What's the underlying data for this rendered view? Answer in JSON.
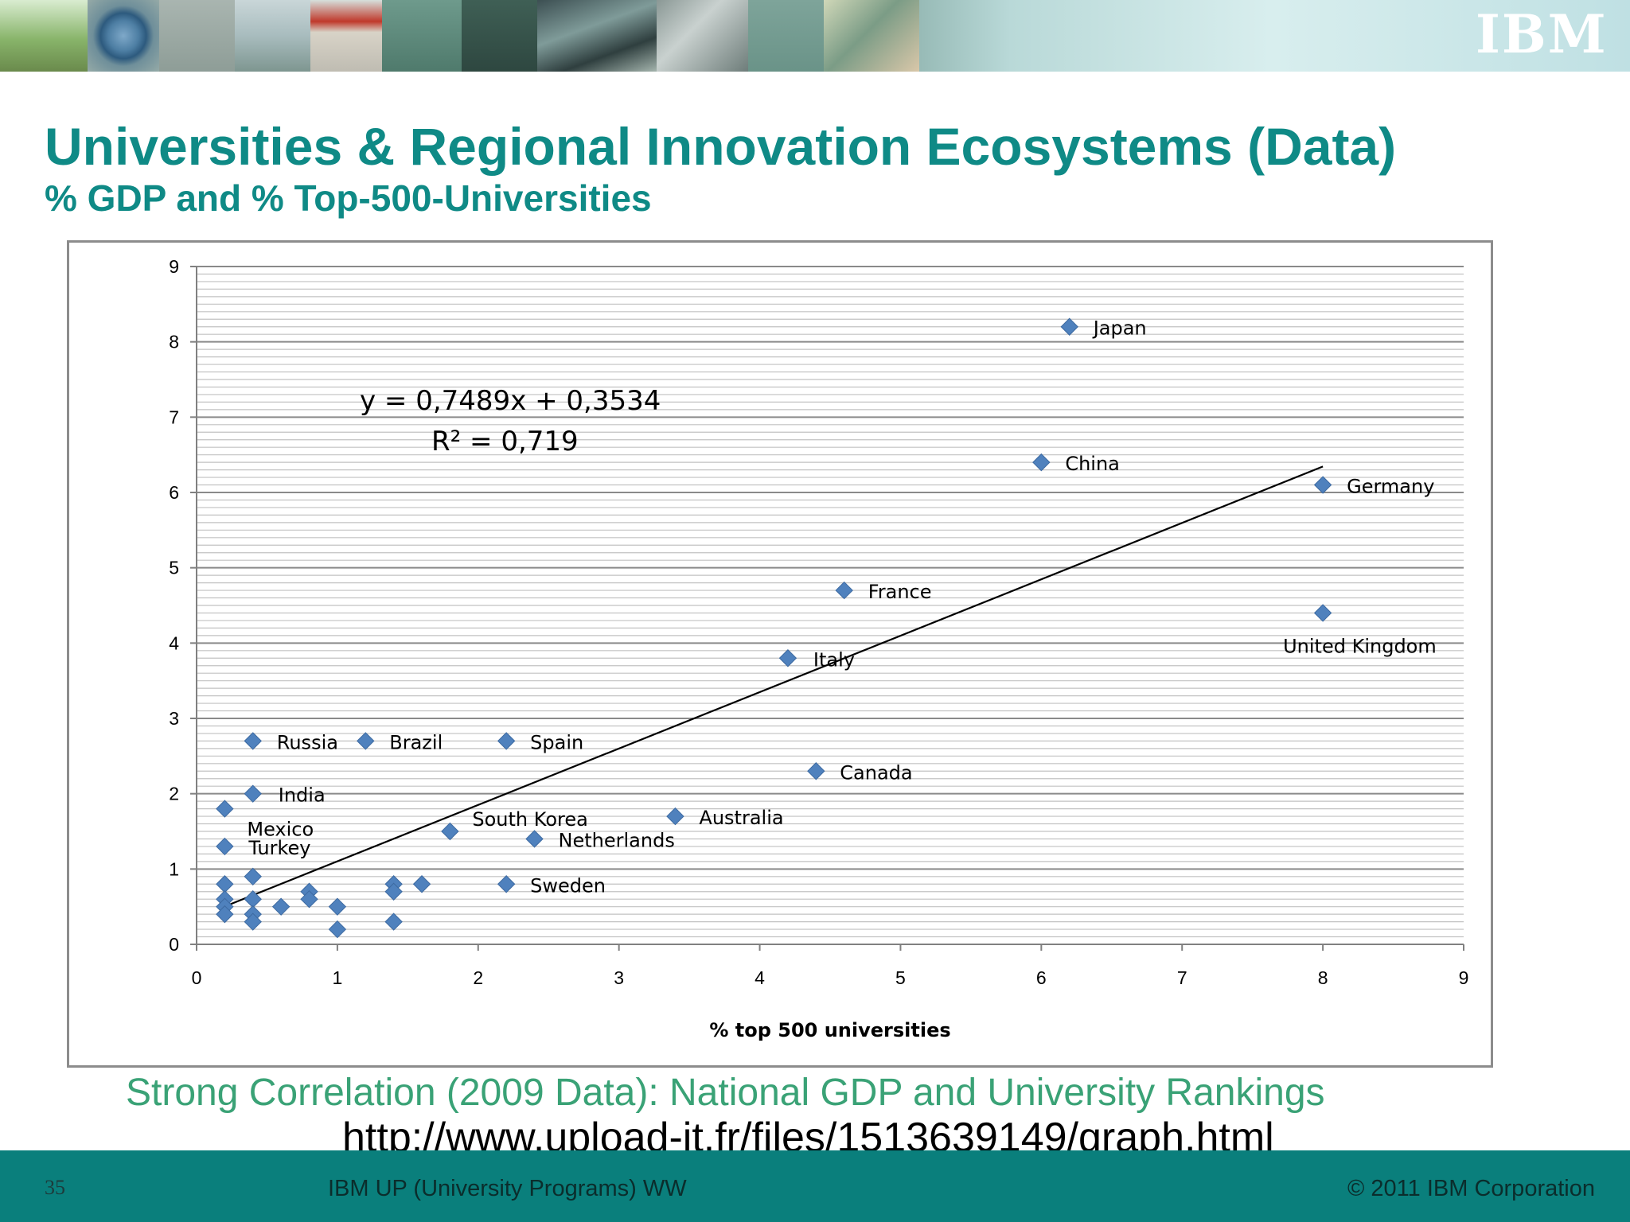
{
  "header": {
    "logo_text": "IBM"
  },
  "slide": {
    "title": "Universities & Regional Innovation Ecosystems (Data)",
    "subtitle": "% GDP and % Top-500-Universities",
    "caption": "Strong Correlation (2009 Data): National GDP and University Rankings",
    "url": "http://www.upload-it.fr/files/1513639149/graph.html"
  },
  "footer": {
    "page_number": "35",
    "left_text": "IBM UP (University Programs) WW",
    "right_text": "© 2011 IBM Corporation"
  },
  "colors": {
    "title": "#0f8a86",
    "caption": "#3aa276",
    "footer_bg": "#0a7f7c",
    "marker": "#4f81bd",
    "grid": "#a6a6a6"
  },
  "chart_data": {
    "type": "scatter",
    "xlabel": "% top 500 universities",
    "ylabel": "",
    "xlim": [
      0,
      9
    ],
    "ylim": [
      0,
      9
    ],
    "xticks": [
      "0",
      "1",
      "2",
      "3",
      "4",
      "5",
      "6",
      "7",
      "8",
      "9"
    ],
    "yticks": [
      "0",
      "1",
      "2",
      "3",
      "4",
      "5",
      "6",
      "7",
      "8",
      "9"
    ],
    "grid": true,
    "legend": "none",
    "marker": "diamond",
    "points": [
      {
        "x": 6.2,
        "y": 8.2,
        "label": "Japan"
      },
      {
        "x": 6.0,
        "y": 6.4,
        "label": "China"
      },
      {
        "x": 8.0,
        "y": 6.1,
        "label": "Germany"
      },
      {
        "x": 4.6,
        "y": 4.7,
        "label": "France"
      },
      {
        "x": 8.0,
        "y": 4.4,
        "label": "United Kingdom"
      },
      {
        "x": 4.2,
        "y": 3.8,
        "label": "Italy"
      },
      {
        "x": 0.4,
        "y": 2.7,
        "label": "Russia"
      },
      {
        "x": 1.2,
        "y": 2.7,
        "label": "Brazil"
      },
      {
        "x": 2.2,
        "y": 2.7,
        "label": "Spain"
      },
      {
        "x": 4.4,
        "y": 2.3,
        "label": "Canada"
      },
      {
        "x": 0.4,
        "y": 2.0,
        "label": "India"
      },
      {
        "x": 0.2,
        "y": 1.8,
        "label": "Mexico"
      },
      {
        "x": 1.8,
        "y": 1.5,
        "label": "South Korea"
      },
      {
        "x": 3.4,
        "y": 1.7,
        "label": "Australia"
      },
      {
        "x": 2.4,
        "y": 1.4,
        "label": "Netherlands"
      },
      {
        "x": 0.2,
        "y": 1.3,
        "label": "Turkey"
      },
      {
        "x": 2.2,
        "y": 0.8,
        "label": "Sweden"
      },
      {
        "x": 0.4,
        "y": 0.9
      },
      {
        "x": 0.2,
        "y": 0.8
      },
      {
        "x": 0.2,
        "y": 0.6
      },
      {
        "x": 0.2,
        "y": 0.5
      },
      {
        "x": 0.2,
        "y": 0.4
      },
      {
        "x": 0.4,
        "y": 0.6
      },
      {
        "x": 0.4,
        "y": 0.4
      },
      {
        "x": 0.4,
        "y": 0.3
      },
      {
        "x": 0.6,
        "y": 0.5
      },
      {
        "x": 0.8,
        "y": 0.7
      },
      {
        "x": 0.8,
        "y": 0.6
      },
      {
        "x": 1.0,
        "y": 0.5
      },
      {
        "x": 1.0,
        "y": 0.2
      },
      {
        "x": 1.4,
        "y": 0.8
      },
      {
        "x": 1.4,
        "y": 0.7
      },
      {
        "x": 1.4,
        "y": 0.3
      },
      {
        "x": 1.6,
        "y": 0.8
      }
    ],
    "trendline": {
      "slope": 0.7489,
      "intercept": 0.3534,
      "x_start": 0.2,
      "x_end": 8.0,
      "equation": "y = 0,7489x + 0,3534",
      "r_squared": "R² = 0,719"
    }
  }
}
